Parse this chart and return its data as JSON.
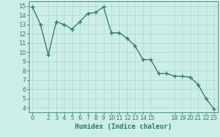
{
  "x": [
    0,
    1,
    2,
    3,
    4,
    5,
    6,
    7,
    8,
    9,
    10,
    11,
    12,
    13,
    14,
    15,
    16,
    17,
    18,
    19,
    20,
    21,
    22,
    23
  ],
  "y": [
    14.9,
    13.0,
    9.7,
    13.3,
    13.0,
    12.5,
    13.3,
    14.2,
    14.3,
    14.9,
    12.1,
    12.1,
    11.5,
    10.7,
    9.2,
    9.2,
    7.7,
    7.7,
    7.4,
    7.4,
    7.3,
    6.5,
    5.0,
    3.9
  ],
  "line_color": "#2d7a6a",
  "marker": "+",
  "marker_size": 4,
  "linewidth": 1.0,
  "bg_color": "#cceee8",
  "grid_color": "#aad4cc",
  "xlabel": "Humidex (Indice chaleur)",
  "xlabel_color": "#2d7a6a",
  "xlabel_fontsize": 7,
  "tick_color": "#2d7a6a",
  "tick_fontsize": 6,
  "ylim": [
    3.5,
    15.5
  ],
  "xlim": [
    -0.5,
    23.5
  ],
  "yticks": [
    4,
    5,
    6,
    7,
    8,
    9,
    10,
    11,
    12,
    13,
    14,
    15
  ],
  "xticks": [
    0,
    2,
    3,
    4,
    5,
    6,
    7,
    8,
    9,
    10,
    11,
    12,
    13,
    14,
    15,
    18,
    19,
    20,
    21,
    22,
    23
  ]
}
